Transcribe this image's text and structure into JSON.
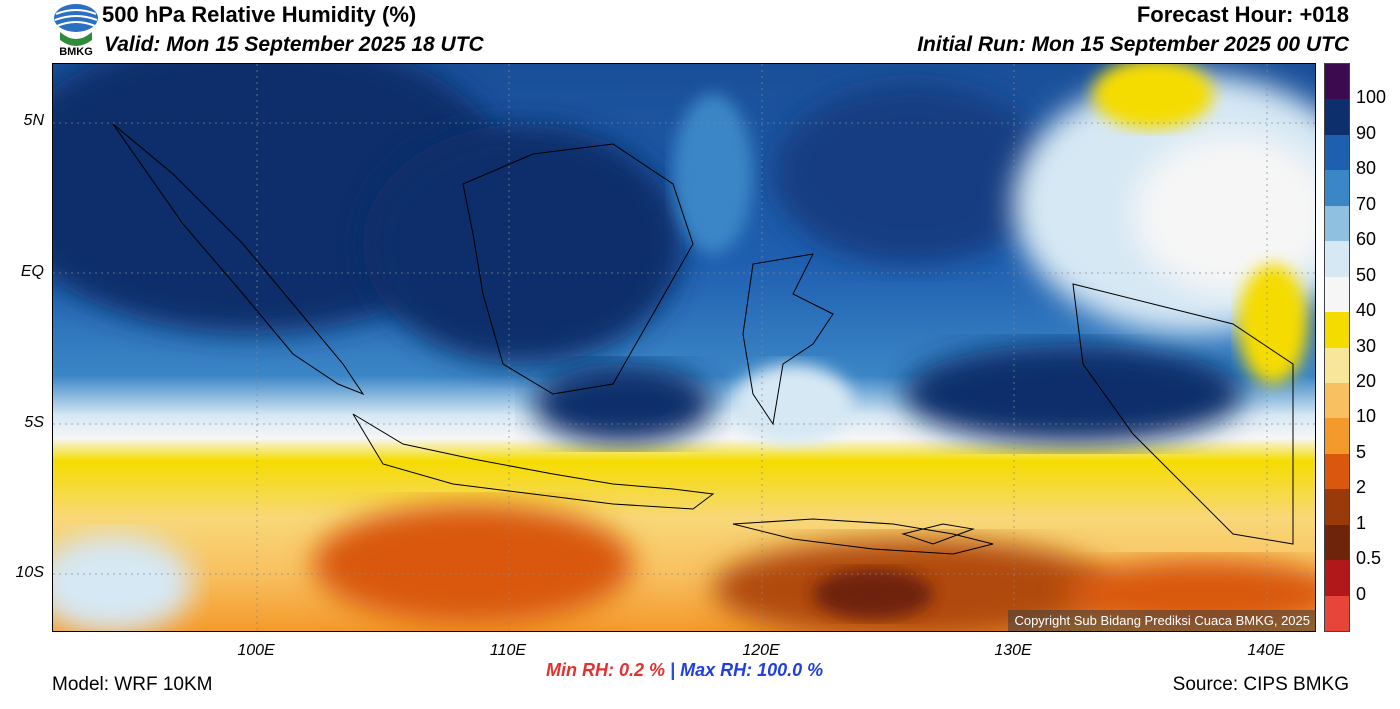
{
  "header": {
    "title": "500 hPa Relative Humidity (%)",
    "valid": "Valid: Mon 15 September 2025 18 UTC",
    "forecast_hour": "Forecast Hour: +018",
    "initial_run": "Initial Run: Mon 15 September 2025 00 UTC",
    "logo_text": "BMKG"
  },
  "map": {
    "lat_labels": [
      "5N",
      "EQ",
      "5S",
      "10S"
    ],
    "lon_labels": [
      "100E",
      "110E",
      "120E",
      "130E",
      "140E"
    ],
    "copyright": "Copyright Sub Bidang Prediksi Cuaca BMKG, 2025"
  },
  "colorbar": {
    "labels": [
      "100",
      "90",
      "80",
      "70",
      "60",
      "50",
      "40",
      "30",
      "20",
      "10",
      "5",
      "2",
      "1",
      "0.5",
      "0"
    ],
    "colors": [
      "#3b0a4f",
      "#0d2f6b",
      "#1f5fb0",
      "#3b86c6",
      "#8fc0e0",
      "#d6e8f4",
      "#f6f6f6",
      "#f5dc00",
      "#f8e79a",
      "#f8c060",
      "#f49a2a",
      "#d9580e",
      "#9a3a0b",
      "#6e2408",
      "#b0181a",
      "#e8453a"
    ]
  },
  "footer": {
    "model": "Model: WRF 10KM",
    "source": "Source: CIPS BMKG",
    "min_label": "Min RH:",
    "min_value": "0.2 %",
    "separator": "|",
    "max_text": "Max RH: 100.0 %"
  }
}
